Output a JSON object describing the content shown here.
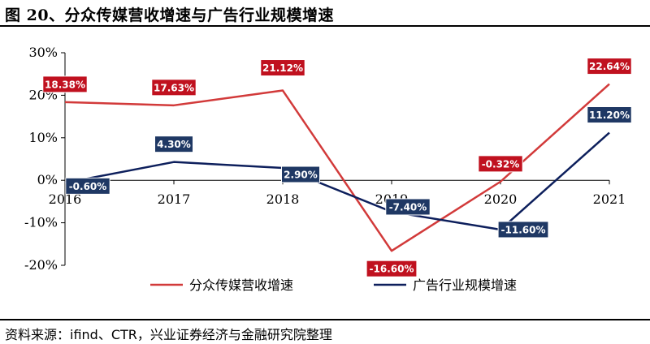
{
  "title": "图 20、分众传媒营收增速与广告行业规模增速",
  "source": "资料来源：ifind、CTR，兴业证券经济与金融研究院整理",
  "chart_data": {
    "type": "line",
    "title": "图 20、分众传媒营收增速与广告行业规模增速",
    "categories": [
      "2016",
      "2017",
      "2018",
      "2019",
      "2020",
      "2021"
    ],
    "y_ticks": [
      "30%",
      "20%",
      "10%",
      "0%",
      "-10%",
      "-20%"
    ],
    "ylim": [
      -20,
      30
    ],
    "grid": false,
    "legend_position": "bottom",
    "series": [
      {
        "name": "分众传媒营收增速",
        "color": "#d23a3a",
        "label_bg": "#c0111f",
        "values": [
          18.38,
          17.63,
          21.12,
          -16.6,
          -0.32,
          22.64
        ],
        "labels": [
          "18.38%",
          "17.63%",
          "21.12%",
          "-16.60%",
          "-0.32%",
          "22.64%"
        ]
      },
      {
        "name": "广告行业规模增速",
        "color": "#0d1f5c",
        "label_bg": "#1f3864",
        "values": [
          -0.6,
          4.3,
          2.9,
          -7.4,
          -11.6,
          11.2
        ],
        "labels": [
          "-0.60%",
          "4.30%",
          "2.90%",
          "-7.40%",
          "-11.60%",
          "11.20%"
        ]
      }
    ]
  }
}
